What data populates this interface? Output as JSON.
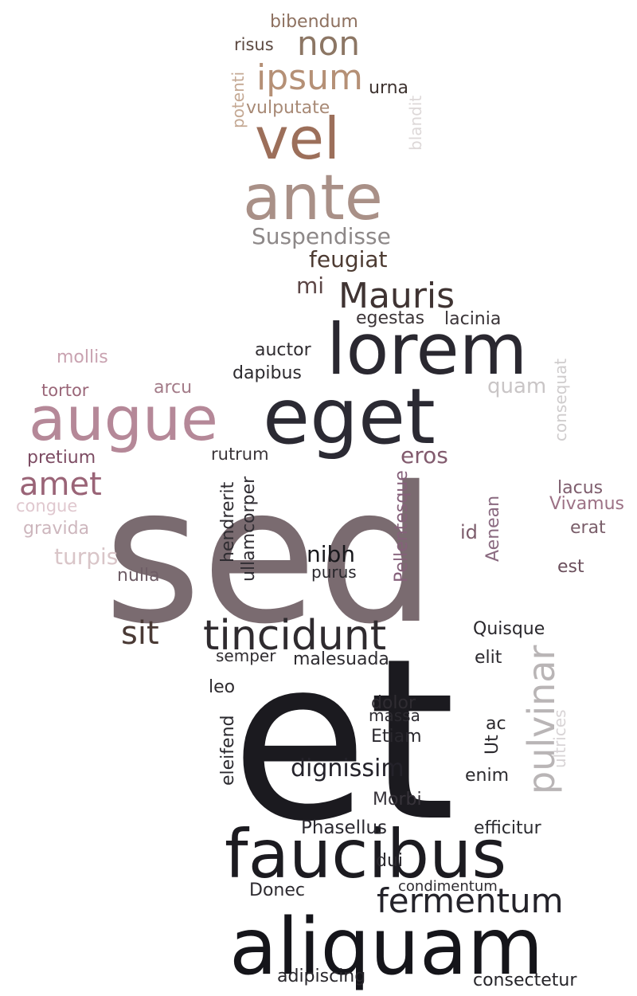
{
  "words": [
    {
      "text": "sed",
      "color": "#7a6b70"
    },
    {
      "text": "et",
      "color": "#1b1a1f"
    },
    {
      "text": "aliquam",
      "color": "#15151a"
    },
    {
      "text": "faucibus",
      "color": "#1c1b20"
    },
    {
      "text": "eget",
      "color": "#2b2a33"
    },
    {
      "text": "lorem",
      "color": "#2a2830"
    },
    {
      "text": "augue",
      "color": "#b58898"
    },
    {
      "text": "ante",
      "color": "#a99087"
    },
    {
      "text": "vel",
      "color": "#9c6f5a"
    },
    {
      "text": "tincidunt",
      "color": "#2f2b2f"
    },
    {
      "text": "fermentum",
      "color": "#24232a"
    },
    {
      "text": "Mauris",
      "color": "#3f3332"
    },
    {
      "text": "pulvinar",
      "color": "#b9b5b6"
    },
    {
      "text": "ipsum",
      "color": "#b59076"
    },
    {
      "text": "amet",
      "color": "#9a6477"
    },
    {
      "text": "non",
      "color": "#8c7664"
    },
    {
      "text": "sit",
      "color": "#4a3a35"
    },
    {
      "text": "dignissim",
      "color": "#24222a"
    },
    {
      "text": "Suspendisse",
      "color": "#8d8888"
    },
    {
      "text": "feugiat",
      "color": "#4d3b32"
    },
    {
      "text": "nibh",
      "color": "#18181c"
    },
    {
      "text": "turpis",
      "color": "#d9c5c8"
    },
    {
      "text": "eros",
      "color": "#825b6e"
    },
    {
      "text": "quam",
      "color": "#c9c5c6"
    },
    {
      "text": "mi",
      "color": "#5c4646"
    },
    {
      "text": "Phasellus",
      "color": "#2b2930"
    },
    {
      "text": "efficitur",
      "color": "#2b2b30"
    },
    {
      "text": "consectetur",
      "color": "#26252a"
    },
    {
      "text": "adipiscing",
      "color": "#28262b"
    },
    {
      "text": "Donec",
      "color": "#2e2b30"
    },
    {
      "text": "dui",
      "color": "#2a282d"
    },
    {
      "text": "Morbi",
      "color": "#37333a"
    },
    {
      "text": "enim",
      "color": "#2b2a2e"
    },
    {
      "text": "Etiam",
      "color": "#2a282e"
    },
    {
      "text": "massa",
      "color": "#2c2a30"
    },
    {
      "text": "dolor",
      "color": "#2f2c32"
    },
    {
      "text": "malesuada",
      "color": "#2d2b30"
    },
    {
      "text": "semper",
      "color": "#302d31"
    },
    {
      "text": "leo",
      "color": "#2e2b2f"
    },
    {
      "text": "elit",
      "color": "#2c2a2f"
    },
    {
      "text": "Quisque",
      "color": "#2a282d"
    },
    {
      "text": "purus",
      "color": "#28272c"
    },
    {
      "text": "nulla",
      "color": "#6e5d66"
    },
    {
      "text": "bibendum",
      "color": "#8e7160"
    },
    {
      "text": "risus",
      "color": "#5d4a42"
    },
    {
      "text": "urna",
      "color": "#3e3330"
    },
    {
      "text": "vulputate",
      "color": "#a88a76"
    },
    {
      "text": "egestas",
      "color": "#3c3538"
    },
    {
      "text": "lacinia",
      "color": "#3a3438"
    },
    {
      "text": "auctor",
      "color": "#2f2c30"
    },
    {
      "text": "dapibus",
      "color": "#2c2a2e"
    },
    {
      "text": "rutrum",
      "color": "#3a3438"
    },
    {
      "text": "mollis",
      "color": "#c9a2b0"
    },
    {
      "text": "tortor",
      "color": "#9a6678"
    },
    {
      "text": "arcu",
      "color": "#a37b88"
    },
    {
      "text": "pretium",
      "color": "#7d4c63"
    },
    {
      "text": "congue",
      "color": "#e0c8cf"
    },
    {
      "text": "gravida",
      "color": "#cdb6bd"
    },
    {
      "text": "lacus",
      "color": "#7e5d6d"
    },
    {
      "text": "Vivamus",
      "color": "#9c7185"
    },
    {
      "text": "erat",
      "color": "#7a5e6a"
    },
    {
      "text": "id",
      "color": "#7c5c6b"
    },
    {
      "text": "est",
      "color": "#6b4f5c"
    },
    {
      "text": "ac",
      "color": "#2c2a2e"
    },
    {
      "text": "condimentum",
      "color": "#2e2c31"
    },
    {
      "text": "potenti",
      "color": "#c4a893"
    },
    {
      "text": "blandit",
      "color": "#ddd8d8"
    },
    {
      "text": "consequat",
      "color": "#cfcccd"
    },
    {
      "text": "hendrerit",
      "color": "#2f2c31"
    },
    {
      "text": "ullamcorper",
      "color": "#302d33"
    },
    {
      "text": "Pellentesque",
      "color": "#85607a"
    },
    {
      "text": "Aenean",
      "color": "#8a6a80"
    },
    {
      "text": "eleifend",
      "color": "#2b2a2f"
    },
    {
      "text": "Ut",
      "color": "#2c2a2f"
    },
    {
      "text": "ultrices",
      "color": "#d8d4d6"
    }
  ]
}
